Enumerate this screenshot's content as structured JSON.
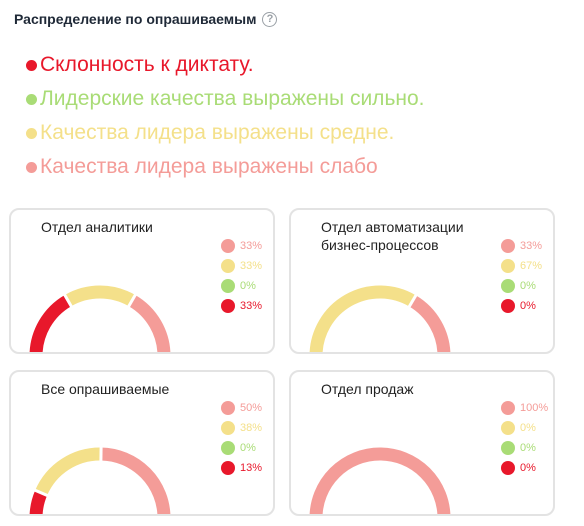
{
  "header": {
    "title": "Распределение по опрашиваемым",
    "help_icon": "question-circle-icon"
  },
  "legend": [
    {
      "label": "Склонность к диктату.",
      "color": "#e8182b"
    },
    {
      "label": "Лидерские качества выражены сильно.",
      "color": "#a9dc76"
    },
    {
      "label": "Качества лидера выражены средне.",
      "color": "#f4e08a"
    },
    {
      "label": "Качества лидера выражены слабо",
      "color": "#f49c98"
    }
  ],
  "chart_data": [
    {
      "type": "pie",
      "title": "Отдел аналитики",
      "series": [
        {
          "value": 33,
          "label": "33%",
          "color": "#f49c98"
        },
        {
          "value": 33,
          "label": "33%",
          "color": "#f4e08a"
        },
        {
          "value": 0,
          "label": "0%",
          "color": "#a9dc76"
        },
        {
          "value": 33,
          "label": "33%",
          "color": "#e8182b"
        }
      ]
    },
    {
      "type": "pie",
      "title": "Отдел автоматизации бизнес-процессов",
      "series": [
        {
          "value": 33,
          "label": "33%",
          "color": "#f49c98"
        },
        {
          "value": 67,
          "label": "67%",
          "color": "#f4e08a"
        },
        {
          "value": 0,
          "label": "0%",
          "color": "#a9dc76"
        },
        {
          "value": 0,
          "label": "0%",
          "color": "#e8182b"
        }
      ]
    },
    {
      "type": "pie",
      "title": "Все опрашиваемые",
      "series": [
        {
          "value": 50,
          "label": "50%",
          "color": "#f49c98"
        },
        {
          "value": 38,
          "label": "38%",
          "color": "#f4e08a"
        },
        {
          "value": 0,
          "label": "0%",
          "color": "#a9dc76"
        },
        {
          "value": 13,
          "label": "13%",
          "color": "#e8182b"
        }
      ]
    },
    {
      "type": "pie",
      "title": "Отдел продаж",
      "series": [
        {
          "value": 100,
          "label": "100%",
          "color": "#f49c98"
        },
        {
          "value": 0,
          "label": "0%",
          "color": "#f4e08a"
        },
        {
          "value": 0,
          "label": "0%",
          "color": "#a9dc76"
        },
        {
          "value": 0,
          "label": "0%",
          "color": "#e8182b"
        }
      ]
    }
  ]
}
